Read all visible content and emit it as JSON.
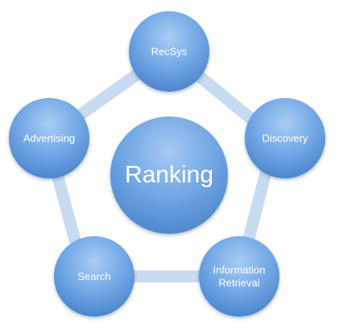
{
  "diagram": {
    "center": {
      "label": "Ranking"
    },
    "nodes": [
      {
        "id": "recsys",
        "label_lines": [
          "RecSys"
        ]
      },
      {
        "id": "discovery",
        "label_lines": [
          "Discovery"
        ]
      },
      {
        "id": "information-retrieval",
        "label_lines": [
          "Information",
          "Retrieval"
        ]
      },
      {
        "id": "search",
        "label_lines": [
          "Search"
        ]
      },
      {
        "id": "advertising",
        "label_lines": [
          "Advertising"
        ]
      }
    ],
    "colors": {
      "node_light": "#a9ccf4",
      "node_mid": "#6ea3e4",
      "node_dark": "#4d86cc",
      "ring": "#c9dbf1",
      "label": "#ffffff"
    }
  }
}
